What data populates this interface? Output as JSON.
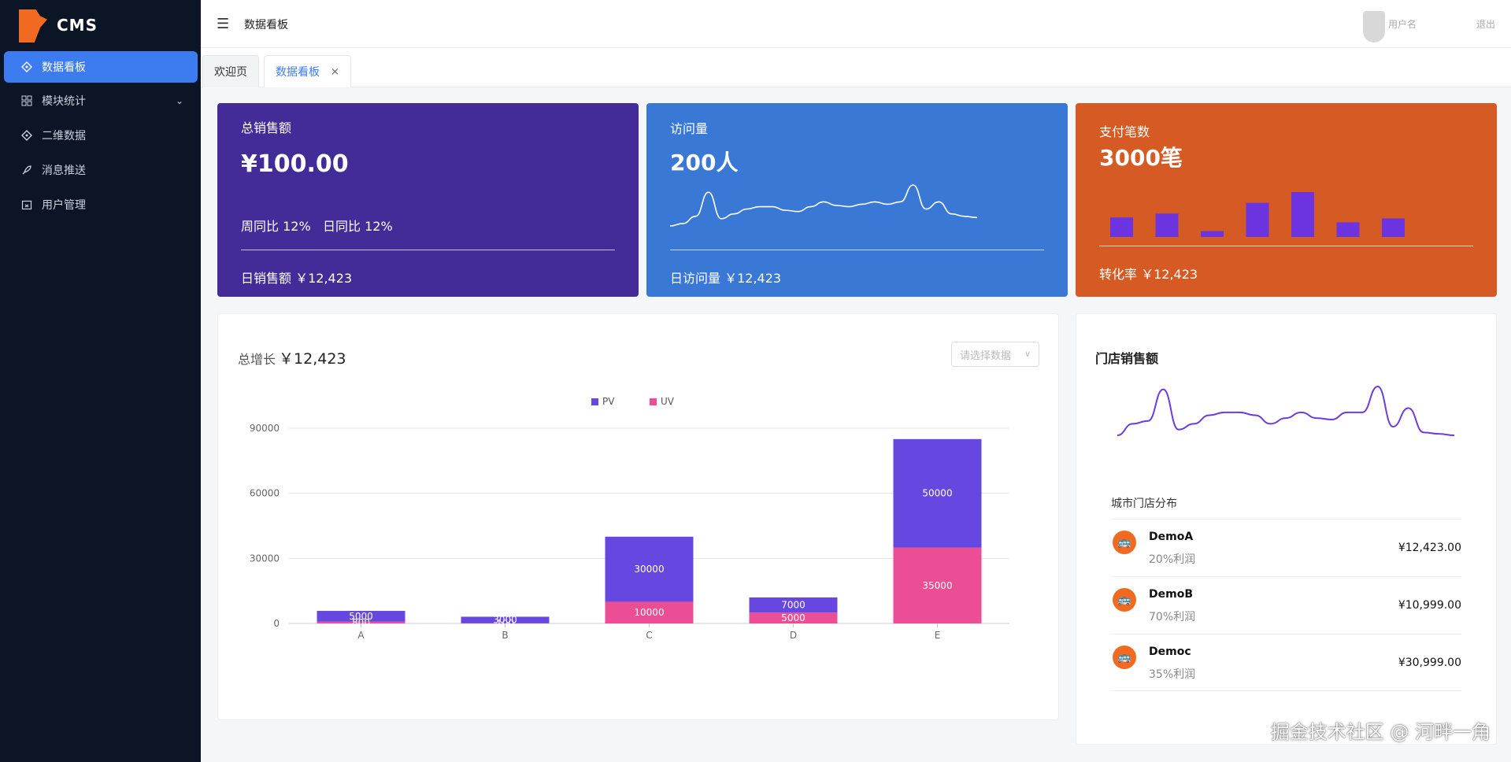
{
  "sidebar": {
    "logo_text": "CMS",
    "items": [
      {
        "label": "数据看板",
        "icon": "dashboard-icon",
        "active": true
      },
      {
        "label": "模块统计",
        "icon": "grid-icon",
        "has_children": true
      },
      {
        "label": "二维数据",
        "icon": "diamond-icon"
      },
      {
        "label": "消息推送",
        "icon": "rocket-icon"
      },
      {
        "label": "用户管理",
        "icon": "calendar-icon"
      }
    ]
  },
  "header": {
    "title": "数据看板",
    "user_name": "用户名",
    "user_extra": "退出"
  },
  "tabs": [
    {
      "label": "欢迎页",
      "active": false
    },
    {
      "label": "数据看板",
      "active": true,
      "close": "×"
    }
  ],
  "cards": {
    "sales": {
      "title": "总销售额",
      "value": "¥100.00",
      "week_ratio": "周同比 12%",
      "day_ratio": "日同比 12%",
      "footer": "日销售额 ￥12,423"
    },
    "visits": {
      "title": "访问量",
      "value": "200人",
      "footer": "日访问量 ￥12,423",
      "sparkline": [
        20,
        22,
        28,
        48,
        26,
        30,
        34,
        36,
        36,
        33,
        32,
        36,
        40,
        37,
        36,
        38,
        40,
        38,
        40,
        54,
        34,
        40,
        30,
        28,
        27
      ]
    },
    "payments": {
      "title": "支付笔数",
      "value": "3000笔",
      "footer": "转化率 ￥12,423",
      "bars": [
        40,
        48,
        12,
        70,
        92,
        30,
        38
      ]
    }
  },
  "growth": {
    "label": "总增长",
    "value": "￥12,423",
    "select_placeholder": "请选择数据"
  },
  "chart_data": {
    "type": "bar",
    "stacked": true,
    "categories": [
      "A",
      "B",
      "C",
      "D",
      "E"
    ],
    "series": [
      {
        "name": "PV",
        "color": "#6648e0",
        "values": [
          5000,
          3000,
          30000,
          7000,
          50000
        ]
      },
      {
        "name": "UV",
        "color": "#ec4e96",
        "values": [
          800,
          100,
          10000,
          5000,
          35000
        ]
      }
    ],
    "yticks": [
      0,
      30000,
      60000,
      90000
    ],
    "ylim": [
      0,
      90000
    ],
    "legend": "top-center"
  },
  "store": {
    "title": "门店销售额",
    "sparkline": [
      14,
      22,
      24,
      46,
      18,
      22,
      28,
      30,
      30,
      28,
      22,
      26,
      30,
      26,
      25,
      30,
      30,
      48,
      20,
      33,
      16,
      15,
      14
    ],
    "city_title": "城市门店分布",
    "rows": [
      {
        "name": "DemoA",
        "sub": "20%利润",
        "amount": "¥12,423.00"
      },
      {
        "name": "DemoB",
        "sub": "70%利润",
        "amount": "¥10,999.00"
      },
      {
        "name": "Democ",
        "sub": "35%利润",
        "amount": "¥30,999.00"
      }
    ]
  },
  "watermark": "掘金技术社区 @ 河畔一角"
}
